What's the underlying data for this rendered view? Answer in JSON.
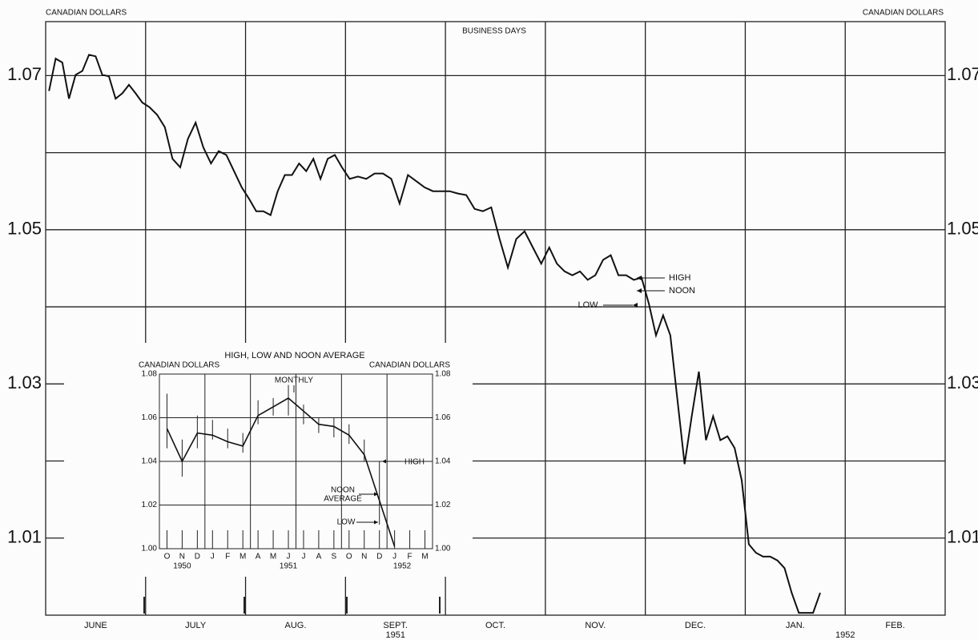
{
  "chart_data": [
    {
      "type": "line",
      "subtitle": "BUSINESS DAYS",
      "ylabel": "CANADIAN DOLLARS",
      "categories": [
        "JUNE",
        "JULY",
        "AUG.",
        "SEPT.",
        "OCT.",
        "NOV.",
        "DEC.",
        "JAN.",
        "FEB."
      ],
      "years": [
        "1951",
        "1952"
      ],
      "values": [
        [
          1.068,
          1.0722,
          1.0717,
          1.067,
          1.0701,
          1.0706,
          1.0727,
          1.0725,
          1.0701,
          1.0699,
          1.067,
          1.0677,
          1.0688,
          1.0677,
          1.0665
        ],
        [
          1.0659,
          1.0649,
          1.0633,
          1.0592,
          1.0581,
          1.0618,
          1.0639,
          1.0607,
          1.0586,
          1.0602,
          1.0597,
          1.0576,
          1.0555
        ],
        [
          1.054,
          1.0524,
          1.0524,
          1.0519,
          1.055,
          1.0571,
          1.0571,
          1.0586,
          1.0576,
          1.0592,
          1.0566,
          1.0592,
          1.0597,
          1.0581
        ],
        [
          1.0566,
          1.0569,
          1.0566,
          1.0573,
          1.0573,
          1.0566,
          1.0534,
          1.0571,
          1.0563,
          1.0555,
          1.055,
          1.055
        ],
        [
          1.055,
          1.0547,
          1.0545,
          1.0527,
          1.0524,
          1.0529,
          1.0488,
          1.0451,
          1.0488,
          1.0498,
          1.0477,
          1.0456
        ],
        [
          1.0477,
          1.0456,
          1.0446,
          1.0441,
          1.0446,
          1.0435,
          1.0441,
          1.0461,
          1.0467,
          1.0441,
          1.0441,
          1.0435,
          1.0438
        ],
        [
          1.0404,
          1.0363,
          1.0389,
          1.0363,
          1.0279,
          1.0196,
          1.0258,
          1.0316,
          1.0227,
          1.0258,
          1.0227,
          1.0232,
          1.0217,
          1.0175
        ],
        [
          1.0092,
          1.0081,
          1.0076,
          1.0076,
          1.0071,
          1.0061,
          1.0029,
          1.0003,
          1.0003,
          1.0003,
          1.0029,
          null,
          null,
          null
        ],
        []
      ],
      "color": "#111111",
      "ylim": [
        1.0,
        1.077
      ],
      "yticks": [
        1.01,
        1.03,
        1.05,
        1.07
      ],
      "ygrid": [
        1.02,
        1.04,
        1.06
      ],
      "grid": true,
      "annotations": [
        "HIGH",
        "NOON",
        "LOW"
      ]
    },
    {
      "type": "line",
      "title": "HIGH, LOW AND NOON AVERAGE",
      "ylabel": "CANADIAN DOLLARS",
      "categories": [
        "O",
        "N",
        "D",
        "J",
        "F",
        "M",
        "A",
        "M",
        "J",
        "J",
        "A",
        "S",
        "O",
        "N",
        "D",
        "J",
        "F",
        "M"
      ],
      "years": [
        "1950",
        "1951",
        "1952"
      ],
      "values": [
        1.055,
        1.04,
        1.053,
        1.052,
        1.049,
        1.047,
        1.061,
        1.065,
        1.069,
        1.063,
        1.057,
        1.056,
        1.052,
        1.043,
        1.022,
        1.001,
        null,
        null
      ],
      "high": [
        1.071,
        1.05,
        1.061,
        1.059,
        1.055,
        1.053,
        1.068,
        1.069,
        1.075,
        1.066,
        1.06,
        1.06,
        1.057,
        1.05,
        1.04,
        null,
        null,
        null
      ],
      "low": [
        1.046,
        1.033,
        1.046,
        1.05,
        1.046,
        1.044,
        1.057,
        1.061,
        1.061,
        1.057,
        1.053,
        1.051,
        1.048,
        1.04,
        1.011,
        null,
        null,
        null
      ],
      "color": "#111111",
      "ylim": [
        1.0,
        1.08
      ],
      "yticks": [
        {
          "value": 1.0,
          "label": "1.00"
        },
        1.02,
        1.04,
        1.06,
        1.08
      ],
      "grid": true,
      "annotations": [
        "MONTHLY",
        "HIGH",
        "NOON",
        "AVERAGE",
        "LOW"
      ]
    }
  ]
}
